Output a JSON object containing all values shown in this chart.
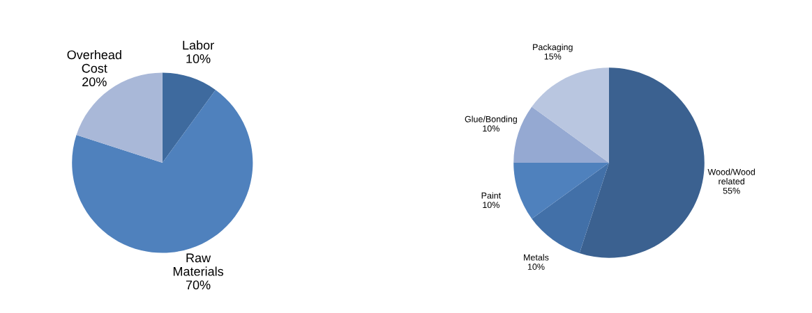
{
  "chart_data": [
    {
      "type": "pie",
      "categories": [
        "Labor",
        "Raw\nMaterials",
        "Overhead\nCost"
      ],
      "values": [
        10,
        70,
        20
      ],
      "value_labels": [
        "10%",
        "70%",
        "20%"
      ],
      "colors": [
        "#3e6a9e",
        "#4f81bd",
        "#a9b8d8"
      ],
      "legend": false
    },
    {
      "type": "pie",
      "categories": [
        "Wood/Wood\nrelated",
        "Metals",
        "Paint",
        "Glue/Bonding",
        "Packaging"
      ],
      "values": [
        55,
        10,
        10,
        10,
        15
      ],
      "value_labels": [
        "55%",
        "10%",
        "10%",
        "10%",
        "15%"
      ],
      "colors": [
        "#3b6190",
        "#4270a8",
        "#4f81bd",
        "#95a9d2",
        "#b9c6e0"
      ],
      "legend": false
    }
  ]
}
